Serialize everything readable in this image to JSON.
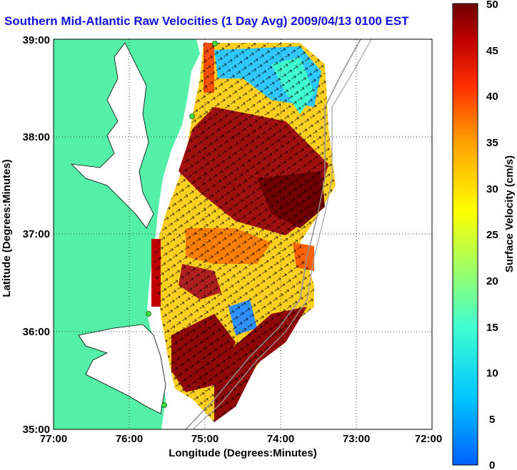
{
  "title": "Southern Mid-Atlantic Raw Velocities (1 Day Avg) 2009/04/13 0100 EST",
  "map": {
    "xlabel": "Longitude (Degrees:Minutes)",
    "ylabel": "Latitude (Degrees:Minutes)",
    "x_ticks": [
      "77:00",
      "76:00",
      "75:00",
      "74:00",
      "73:00",
      "72:00"
    ],
    "y_ticks": [
      "39:00",
      "38:00",
      "37:00",
      "36:00",
      "35:00"
    ],
    "lon_range": [
      -77,
      -72
    ],
    "lat_range": [
      35,
      39
    ],
    "land_color": "#55f0a8",
    "grid": true,
    "station_markers": [
      "green-dot",
      "green-dot",
      "green-dot",
      "green-dot"
    ]
  },
  "colorbar": {
    "label": "Surface Velocity (cm/s)",
    "ticks": [
      "50",
      "45",
      "40",
      "35",
      "30",
      "25",
      "20",
      "15",
      "10",
      "5",
      "0"
    ],
    "range": [
      0,
      50
    ],
    "colormap": "jet"
  }
}
